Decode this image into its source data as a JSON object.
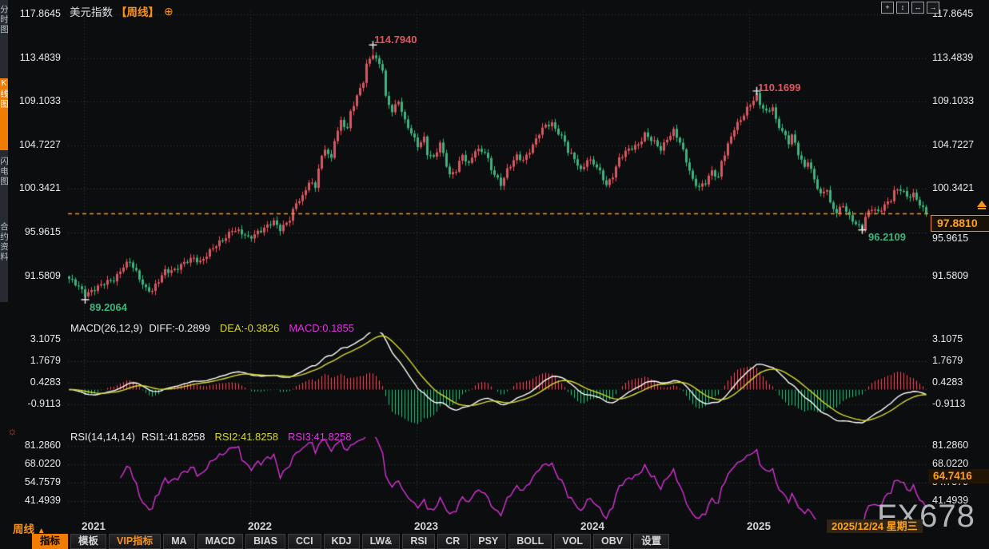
{
  "header": {
    "symbol": "美元指数",
    "timeframe_tag": "【周线】",
    "add_glyph": "⊕"
  },
  "icons": {
    "window_tools": [
      {
        "name": "crosshair-tool-icon",
        "glyph": "+"
      },
      {
        "name": "vertical-scale-tool-icon",
        "glyph": "↕"
      },
      {
        "name": "horizontal-scale-tool-icon",
        "glyph": "↔"
      },
      {
        "name": "forward-tool-icon",
        "glyph": "→"
      }
    ],
    "live_dot": "☼"
  },
  "sidebar": {
    "items": [
      {
        "label": "分时图",
        "active": false
      },
      {
        "label": "K线图",
        "active": true
      },
      {
        "label": "闪电图",
        "active": false
      },
      {
        "label": "合约资料",
        "active": false
      }
    ]
  },
  "price_axis": {
    "labels": [
      "117.8645",
      "113.4839",
      "109.1033",
      "104.7227",
      "100.3421",
      "95.9615",
      "91.5809"
    ]
  },
  "current_price": {
    "value": "97.8810"
  },
  "annotations": {
    "high1": "114.7940",
    "high2": "110.1699",
    "low1": "89.2064",
    "low2": "96.2109"
  },
  "macd": {
    "title": "MACD(26,12,9)",
    "diff_label": "DIFF:-0.2899",
    "dea_label": "DEA:-0.3826",
    "macd_label": "MACD:0.1855",
    "axis": [
      "3.1075",
      "1.7679",
      "0.4283",
      "-0.9113"
    ]
  },
  "rsi": {
    "title": "RSI(14,14,14)",
    "rsi1_label": "RSI1:41.8258",
    "rsi2_label": "RSI2:41.8258",
    "rsi3_label": "RSI3:41.8258",
    "axis": [
      "81.2860",
      "68.0220",
      "54.7579",
      "41.4939"
    ],
    "badge": "64.7416"
  },
  "x_axis": {
    "years": [
      "2021",
      "2022",
      "2023",
      "2024",
      "2025"
    ],
    "date_badge": "2025/12/24 星期三"
  },
  "timeframe_control": {
    "label": "周线",
    "arrow": "▲"
  },
  "footer": {
    "tabs": [
      {
        "label": "指标",
        "state": "active"
      },
      {
        "label": "模板",
        "state": "normal"
      },
      {
        "label": "VIP指标",
        "state": "vip"
      },
      {
        "label": "MA",
        "state": "normal"
      },
      {
        "label": "MACD",
        "state": "normal"
      },
      {
        "label": "BIAS",
        "state": "normal"
      },
      {
        "label": "CCI",
        "state": "normal"
      },
      {
        "label": "KDJ",
        "state": "normal"
      },
      {
        "label": "LW&",
        "state": "normal"
      },
      {
        "label": "RSI",
        "state": "normal"
      },
      {
        "label": "CR",
        "state": "normal"
      },
      {
        "label": "PSY",
        "state": "normal"
      },
      {
        "label": "BOLL",
        "state": "normal"
      },
      {
        "label": "VOL",
        "state": "normal"
      },
      {
        "label": "OBV",
        "state": "normal"
      },
      {
        "label": "设置",
        "state": "normal"
      }
    ]
  },
  "watermark": "FX678",
  "colors": {
    "background": "#0c0d0e",
    "accent_orange": "#f7931a",
    "candle_up": "#db5660",
    "candle_down": "#3cb47c",
    "grid": "#3a3d42",
    "diff_line": "#ffffff",
    "dea_line": "#d6d92c",
    "macd_value": "#e431e4",
    "rsi_line": "#d633d6",
    "cross_marker": "#f0f0f0"
  },
  "chart_data": {
    "type": "candlestick",
    "symbol": "美元指数",
    "interval": "weekly",
    "panels": [
      "price",
      "MACD(26,12,9)",
      "RSI(14)"
    ],
    "price_axis_values": [
      117.8645,
      113.4839,
      109.1033,
      104.7227,
      100.3421,
      95.9615,
      91.5809
    ],
    "macd_axis_values": [
      3.1075,
      1.7679,
      0.4283,
      -0.9113
    ],
    "rsi_axis_values": [
      81.286,
      68.022,
      54.7579,
      41.4939
    ],
    "weeks_total": 269,
    "year_tick_weeks": [
      5,
      57,
      109,
      161,
      213
    ],
    "last_close": 97.881,
    "last_date": "2025/12/24",
    "specials": {
      "lowest": {
        "week": 5,
        "value": 89.2064
      },
      "highest": {
        "week": 95,
        "value": 114.794
      },
      "second_high": {
        "week": 215,
        "value": 110.1699
      },
      "second_low": {
        "week": 248,
        "value": 96.2109
      }
    },
    "price_keypoints": [
      [
        0,
        91.3
      ],
      [
        2,
        90.7
      ],
      [
        5,
        89.8
      ],
      [
        7,
        90.2
      ],
      [
        10,
        90.6
      ],
      [
        14,
        91.3
      ],
      [
        17,
        92.6
      ],
      [
        19,
        92.9
      ],
      [
        21,
        91.9
      ],
      [
        24,
        90.4
      ],
      [
        26,
        90.1
      ],
      [
        28,
        91.0
      ],
      [
        30,
        92.1
      ],
      [
        33,
        92.3
      ],
      [
        36,
        92.8
      ],
      [
        39,
        93.4
      ],
      [
        41,
        93.1
      ],
      [
        44,
        94.0
      ],
      [
        46,
        94.6
      ],
      [
        49,
        95.6
      ],
      [
        51,
        96.3
      ],
      [
        54,
        95.8
      ],
      [
        56,
        95.4
      ],
      [
        59,
        96.1
      ],
      [
        61,
        96.3
      ],
      [
        64,
        97.0
      ],
      [
        66,
        96.4
      ],
      [
        69,
        97.3
      ],
      [
        71,
        98.8
      ],
      [
        73,
        99.5
      ],
      [
        75,
        101.2
      ],
      [
        77,
        100.6
      ],
      [
        78,
        102.4
      ],
      [
        80,
        104.3
      ],
      [
        82,
        103.3
      ],
      [
        83,
        105.4
      ],
      [
        85,
        107.2
      ],
      [
        87,
        106.3
      ],
      [
        88,
        107.9
      ],
      [
        90,
        109.6
      ],
      [
        92,
        111.3
      ],
      [
        93,
        112.9
      ],
      [
        95,
        113.9
      ],
      [
        96,
        113.2
      ],
      [
        98,
        112.3
      ],
      [
        99,
        109.5
      ],
      [
        101,
        108.3
      ],
      [
        103,
        109.2
      ],
      [
        105,
        107.0
      ],
      [
        107,
        105.9
      ],
      [
        109,
        104.8
      ],
      [
        111,
        105.5
      ],
      [
        112,
        103.9
      ],
      [
        114,
        103.3
      ],
      [
        116,
        104.9
      ],
      [
        118,
        102.9
      ],
      [
        119,
        101.8
      ],
      [
        121,
        102.2
      ],
      [
        123,
        103.6
      ],
      [
        125,
        102.8
      ],
      [
        127,
        104.4
      ],
      [
        130,
        104.0
      ],
      [
        132,
        102.2
      ],
      [
        135,
        100.9
      ],
      [
        137,
        102.3
      ],
      [
        140,
        103.5
      ],
      [
        142,
        103.2
      ],
      [
        145,
        104.8
      ],
      [
        147,
        105.9
      ],
      [
        149,
        106.6
      ],
      [
        151,
        106.9
      ],
      [
        153,
        106.1
      ],
      [
        155,
        105.1
      ],
      [
        156,
        104.0
      ],
      [
        158,
        103.3
      ],
      [
        160,
        102.2
      ],
      [
        162,
        103.4
      ],
      [
        164,
        102.9
      ],
      [
        166,
        101.9
      ],
      [
        168,
        100.7
      ],
      [
        170,
        101.8
      ],
      [
        172,
        103.4
      ],
      [
        175,
        104.2
      ],
      [
        178,
        104.9
      ],
      [
        180,
        105.9
      ],
      [
        182,
        105.2
      ],
      [
        185,
        104.3
      ],
      [
        187,
        105.5
      ],
      [
        189,
        106.2
      ],
      [
        191,
        104.9
      ],
      [
        193,
        103.1
      ],
      [
        195,
        101.3
      ],
      [
        197,
        100.6
      ],
      [
        199,
        100.9
      ],
      [
        201,
        102.0
      ],
      [
        203,
        101.5
      ],
      [
        204,
        103.2
      ],
      [
        206,
        104.8
      ],
      [
        208,
        106.3
      ],
      [
        210,
        107.2
      ],
      [
        212,
        108.5
      ],
      [
        214,
        109.4
      ],
      [
        215,
        109.8
      ],
      [
        216,
        108.8
      ],
      [
        218,
        107.9
      ],
      [
        220,
        108.6
      ],
      [
        221,
        107.3
      ],
      [
        223,
        106.2
      ],
      [
        225,
        104.9
      ],
      [
        226,
        105.6
      ],
      [
        228,
        103.9
      ],
      [
        230,
        102.6
      ],
      [
        231,
        103.3
      ],
      [
        233,
        101.2
      ],
      [
        235,
        99.6
      ],
      [
        237,
        100.4
      ],
      [
        238,
        98.9
      ],
      [
        240,
        98.1
      ],
      [
        242,
        98.6
      ],
      [
        244,
        97.4
      ],
      [
        246,
        96.9
      ],
      [
        248,
        96.5
      ],
      [
        249,
        97.6
      ],
      [
        251,
        98.3
      ],
      [
        253,
        97.9
      ],
      [
        255,
        98.8
      ],
      [
        257,
        99.4
      ],
      [
        258,
        100.1
      ],
      [
        260,
        100.2
      ],
      [
        262,
        99.5
      ],
      [
        264,
        99.9
      ],
      [
        266,
        98.9
      ],
      [
        267,
        98.3
      ],
      [
        268,
        97.881
      ]
    ]
  }
}
